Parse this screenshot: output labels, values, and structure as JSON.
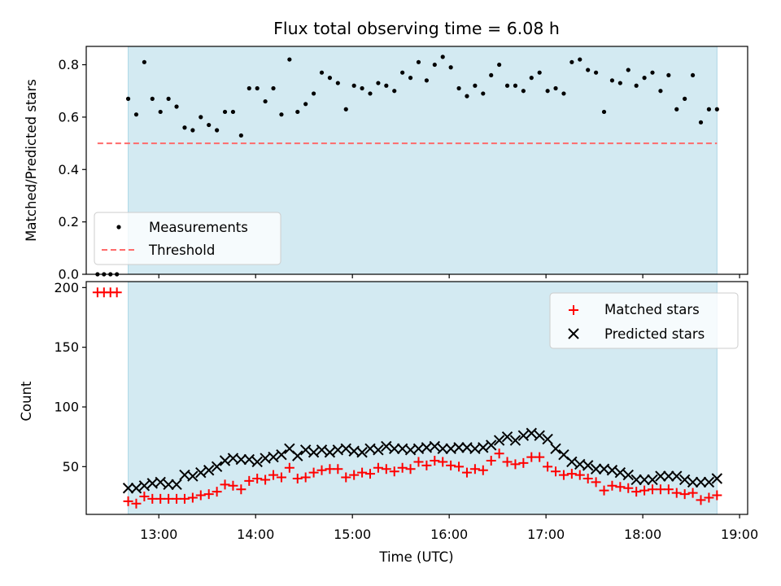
{
  "figure": {
    "title": "Flux total observing time = 6.08 h",
    "xlabel": "Time (UTC)",
    "xticks": [
      "13:00",
      "14:00",
      "15:00",
      "16:00",
      "17:00",
      "18:00",
      "19:00"
    ],
    "shade_color": "#d3eaf2",
    "shade_edge": "#add8e6"
  },
  "chart_data": [
    {
      "type": "scatter",
      "panel": "top",
      "ylabel": "Matched/Predicted stars",
      "xlim": [
        "12:15",
        "19:05"
      ],
      "ylim": [
        0,
        0.87
      ],
      "yticks": [
        "0.0",
        "0.2",
        "0.4",
        "0.6",
        "0.8"
      ],
      "shaded_interval": [
        "12:41",
        "18:46"
      ],
      "legend_position": "lower left",
      "legend": {
        "measurements": "Measurements",
        "threshold": "Threshold"
      },
      "threshold": {
        "value": 0.5,
        "x_range": [
          "12:22",
          "18:46"
        ],
        "color": "#ff6b6b"
      },
      "x": [
        "12:22",
        "12:26",
        "12:30",
        "12:34",
        "12:41",
        "12:46",
        "12:51",
        "12:56",
        "13:01",
        "13:06",
        "13:11",
        "13:16",
        "13:21",
        "13:26",
        "13:31",
        "13:36",
        "13:41",
        "13:46",
        "13:51",
        "13:56",
        "14:01",
        "14:06",
        "14:11",
        "14:16",
        "14:21",
        "14:26",
        "14:31",
        "14:36",
        "14:41",
        "14:46",
        "14:51",
        "14:56",
        "15:01",
        "15:06",
        "15:11",
        "15:16",
        "15:21",
        "15:26",
        "15:31",
        "15:36",
        "15:41",
        "15:46",
        "15:51",
        "15:56",
        "16:01",
        "16:06",
        "16:11",
        "16:16",
        "16:21",
        "16:26",
        "16:31",
        "16:36",
        "16:41",
        "16:46",
        "16:51",
        "16:56",
        "17:01",
        "17:06",
        "17:11",
        "17:16",
        "17:21",
        "17:26",
        "17:31",
        "17:36",
        "17:41",
        "17:46",
        "17:51",
        "17:56",
        "18:01",
        "18:06",
        "18:11",
        "18:16",
        "18:21",
        "18:26",
        "18:31",
        "18:36",
        "18:41",
        "18:46"
      ],
      "y": [
        0,
        0,
        0,
        0,
        0.67,
        0.61,
        0.81,
        0.67,
        0.62,
        0.67,
        0.64,
        0.56,
        0.55,
        0.6,
        0.57,
        0.55,
        0.62,
        0.62,
        0.53,
        0.71,
        0.71,
        0.66,
        0.71,
        0.61,
        0.82,
        0.62,
        0.65,
        0.69,
        0.77,
        0.75,
        0.73,
        0.63,
        0.72,
        0.71,
        0.69,
        0.73,
        0.72,
        0.7,
        0.77,
        0.75,
        0.81,
        0.74,
        0.8,
        0.83,
        0.79,
        0.71,
        0.68,
        0.72,
        0.69,
        0.76,
        0.8,
        0.72,
        0.72,
        0.7,
        0.75,
        0.77,
        0.7,
        0.71,
        0.69,
        0.81,
        0.82,
        0.78,
        0.77,
        0.62,
        0.74,
        0.73,
        0.78,
        0.72,
        0.75,
        0.77,
        0.7,
        0.76,
        0.63,
        0.67,
        0.76,
        0.58,
        0.63,
        0.63
      ]
    },
    {
      "type": "scatter",
      "panel": "bottom",
      "ylabel": "Count",
      "xlim": [
        "12:15",
        "19:05"
      ],
      "ylim": [
        10,
        205
      ],
      "yticks": [
        "50",
        "100",
        "150",
        "200"
      ],
      "shaded_interval": [
        "12:41",
        "18:46"
      ],
      "legend_position": "upper right",
      "series": [
        {
          "name": "Matched stars",
          "marker": "+",
          "color": "#ff0000",
          "x": [
            "12:22",
            "12:26",
            "12:30",
            "12:34",
            "12:41",
            "12:46",
            "12:51",
            "12:56",
            "13:01",
            "13:06",
            "13:11",
            "13:16",
            "13:21",
            "13:26",
            "13:31",
            "13:36",
            "13:41",
            "13:46",
            "13:51",
            "13:56",
            "14:01",
            "14:06",
            "14:11",
            "14:16",
            "14:21",
            "14:26",
            "14:31",
            "14:36",
            "14:41",
            "14:46",
            "14:51",
            "14:56",
            "15:01",
            "15:06",
            "15:11",
            "15:16",
            "15:21",
            "15:26",
            "15:31",
            "15:36",
            "15:41",
            "15:46",
            "15:51",
            "15:56",
            "16:01",
            "16:06",
            "16:11",
            "16:16",
            "16:21",
            "16:26",
            "16:31",
            "16:36",
            "16:41",
            "16:46",
            "16:51",
            "16:56",
            "17:01",
            "17:06",
            "17:11",
            "17:16",
            "17:21",
            "17:26",
            "17:31",
            "17:36",
            "17:41",
            "17:46",
            "17:51",
            "17:56",
            "18:01",
            "18:06",
            "18:11",
            "18:16",
            "18:21",
            "18:26",
            "18:31",
            "18:36",
            "18:41",
            "18:46"
          ],
          "values": [
            196,
            196,
            196,
            196,
            21,
            19,
            25,
            23,
            23,
            23,
            23,
            23,
            24,
            26,
            27,
            29,
            35,
            34,
            31,
            38,
            40,
            39,
            43,
            41,
            49,
            40,
            41,
            45,
            47,
            48,
            48,
            41,
            43,
            45,
            44,
            49,
            48,
            46,
            49,
            48,
            54,
            51,
            55,
            54,
            51,
            50,
            45,
            48,
            47,
            55,
            61,
            54,
            52,
            53,
            58,
            58,
            50,
            46,
            43,
            44,
            43,
            40,
            37,
            30,
            34,
            33,
            32,
            29,
            30,
            31,
            31,
            31,
            28,
            27,
            28,
            22,
            24,
            26
          ]
        },
        {
          "name": "Predicted stars",
          "marker": "x",
          "color": "#000000",
          "x": [
            "12:41",
            "12:46",
            "12:51",
            "12:56",
            "13:01",
            "13:06",
            "13:11",
            "13:16",
            "13:21",
            "13:26",
            "13:31",
            "13:36",
            "13:41",
            "13:46",
            "13:51",
            "13:56",
            "14:01",
            "14:06",
            "14:11",
            "14:16",
            "14:21",
            "14:26",
            "14:31",
            "14:36",
            "14:41",
            "14:46",
            "14:51",
            "14:56",
            "15:01",
            "15:06",
            "15:11",
            "15:16",
            "15:21",
            "15:26",
            "15:31",
            "15:36",
            "15:41",
            "15:46",
            "15:51",
            "15:56",
            "16:01",
            "16:06",
            "16:11",
            "16:16",
            "16:21",
            "16:26",
            "16:31",
            "16:36",
            "16:41",
            "16:46",
            "16:51",
            "16:56",
            "17:01",
            "17:06",
            "17:11",
            "17:16",
            "17:21",
            "17:26",
            "17:31",
            "17:36",
            "17:41",
            "17:46",
            "17:51",
            "17:56",
            "18:01",
            "18:06",
            "18:11",
            "18:16",
            "18:21",
            "18:26",
            "18:31",
            "18:36",
            "18:41",
            "18:46"
          ],
          "values": [
            32,
            32,
            34,
            36,
            37,
            35,
            35,
            43,
            42,
            45,
            47,
            50,
            55,
            57,
            56,
            56,
            54,
            57,
            58,
            60,
            65,
            59,
            64,
            62,
            64,
            62,
            64,
            65,
            63,
            62,
            65,
            64,
            67,
            65,
            65,
            64,
            65,
            66,
            67,
            65,
            65,
            66,
            66,
            65,
            66,
            68,
            72,
            75,
            72,
            76,
            78,
            76,
            73,
            65,
            60,
            54,
            52,
            51,
            48,
            48,
            47,
            45,
            43,
            39,
            39,
            39,
            42,
            42,
            42,
            39,
            37,
            37,
            37,
            40
          ]
        }
      ]
    }
  ]
}
